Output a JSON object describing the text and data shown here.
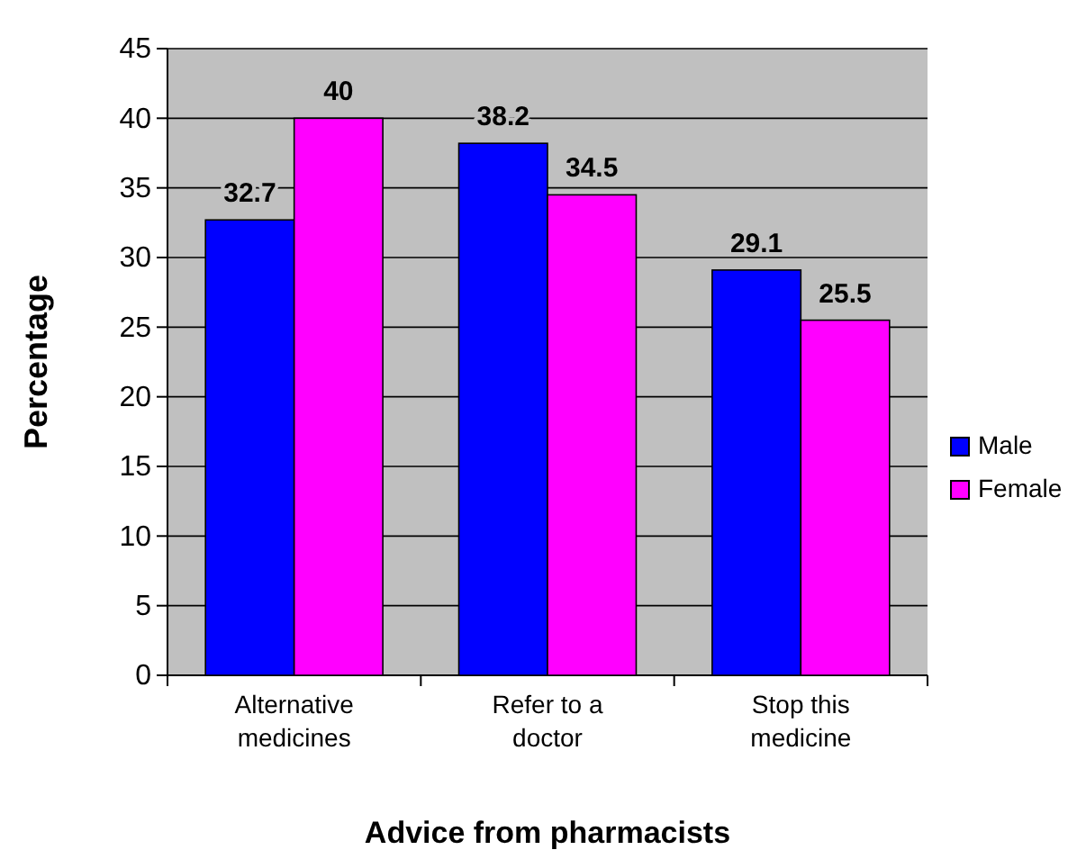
{
  "chart_data": {
    "type": "bar",
    "xlabel": "Advice from pharmacists",
    "ylabel": "Percentage",
    "categories": [
      "Alternative medicines",
      "Refer to a doctor",
      "Stop this medicine"
    ],
    "series": [
      {
        "name": "Male",
        "color": "#0000ff",
        "values": [
          32.7,
          38.2,
          29.1
        ]
      },
      {
        "name": "Female",
        "color": "#ff00ff",
        "values": [
          40,
          34.5,
          25.5
        ]
      }
    ],
    "ylim": [
      0,
      45
    ],
    "yticks": [
      0,
      5,
      10,
      15,
      20,
      25,
      30,
      35,
      40,
      45
    ],
    "grid": "y",
    "legend": "right",
    "data_labels": true
  }
}
